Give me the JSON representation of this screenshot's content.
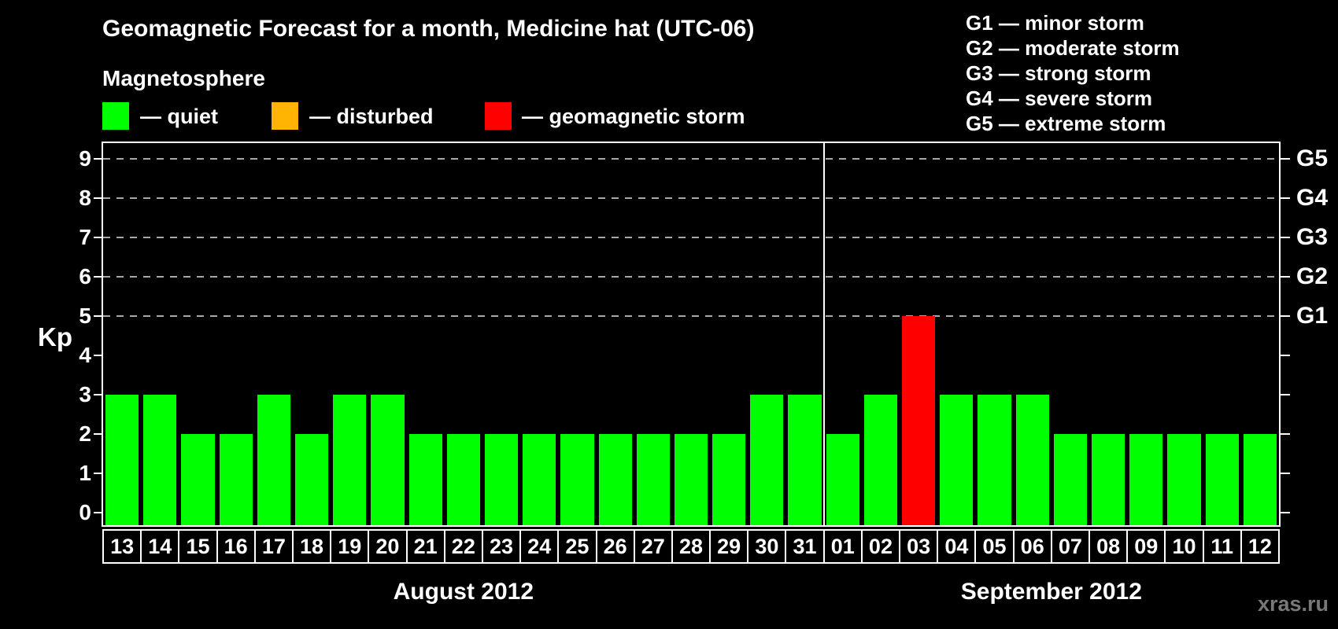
{
  "legend": {
    "heading": "Magnetosphere",
    "items": [
      {
        "name": "quiet",
        "label": "— quiet",
        "color": "#00ff00"
      },
      {
        "name": "disturbed",
        "label": "— disturbed",
        "color": "#ffb404"
      },
      {
        "name": "storm",
        "label": "— geomagnetic storm",
        "color": "#ff0000"
      }
    ]
  },
  "g_legend": {
    "items": [
      "G1 — minor storm",
      "G2 — moderate storm",
      "G3 — strong storm",
      "G4 — severe storm",
      "G5 — extreme storm"
    ]
  },
  "watermark": "xras.ru",
  "chart_data": {
    "type": "bar",
    "title": "Geomagnetic Forecast for a month, Medicine hat (UTC-06)",
    "xlabel": "",
    "ylabel": "Kp",
    "ylim": [
      0,
      9.4
    ],
    "yticks": [
      0,
      1,
      2,
      3,
      4,
      5,
      6,
      7,
      8,
      9
    ],
    "gridlines_kp": [
      5,
      6,
      7,
      8,
      9
    ],
    "grid": "dashed horizontal lines at Kp 5-9",
    "legend_position": "top-left",
    "right_axis": [
      {
        "kp": 5,
        "label": "G1"
      },
      {
        "kp": 6,
        "label": "G2"
      },
      {
        "kp": 7,
        "label": "G3"
      },
      {
        "kp": 8,
        "label": "G4"
      },
      {
        "kp": 9,
        "label": "G5"
      }
    ],
    "months": [
      {
        "label": "August 2012",
        "days": [
          {
            "day": "13",
            "kp": 3,
            "status": "quiet"
          },
          {
            "day": "14",
            "kp": 3,
            "status": "quiet"
          },
          {
            "day": "15",
            "kp": 2,
            "status": "quiet"
          },
          {
            "day": "16",
            "kp": 2,
            "status": "quiet"
          },
          {
            "day": "17",
            "kp": 3,
            "status": "quiet"
          },
          {
            "day": "18",
            "kp": 2,
            "status": "quiet"
          },
          {
            "day": "19",
            "kp": 3,
            "status": "quiet"
          },
          {
            "day": "20",
            "kp": 3,
            "status": "quiet"
          },
          {
            "day": "21",
            "kp": 2,
            "status": "quiet"
          },
          {
            "day": "22",
            "kp": 2,
            "status": "quiet"
          },
          {
            "day": "23",
            "kp": 2,
            "status": "quiet"
          },
          {
            "day": "24",
            "kp": 2,
            "status": "quiet"
          },
          {
            "day": "25",
            "kp": 2,
            "status": "quiet"
          },
          {
            "day": "26",
            "kp": 2,
            "status": "quiet"
          },
          {
            "day": "27",
            "kp": 2,
            "status": "quiet"
          },
          {
            "day": "28",
            "kp": 2,
            "status": "quiet"
          },
          {
            "day": "29",
            "kp": 2,
            "status": "quiet"
          },
          {
            "day": "30",
            "kp": 3,
            "status": "quiet"
          },
          {
            "day": "31",
            "kp": 3,
            "status": "quiet"
          }
        ]
      },
      {
        "label": "September 2012",
        "days": [
          {
            "day": "01",
            "kp": 2,
            "status": "quiet"
          },
          {
            "day": "02",
            "kp": 3,
            "status": "quiet"
          },
          {
            "day": "03",
            "kp": 5,
            "status": "storm"
          },
          {
            "day": "04",
            "kp": 3,
            "status": "quiet"
          },
          {
            "day": "05",
            "kp": 3,
            "status": "quiet"
          },
          {
            "day": "06",
            "kp": 3,
            "status": "quiet"
          },
          {
            "day": "07",
            "kp": 2,
            "status": "quiet"
          },
          {
            "day": "08",
            "kp": 2,
            "status": "quiet"
          },
          {
            "day": "09",
            "kp": 2,
            "status": "quiet"
          },
          {
            "day": "10",
            "kp": 2,
            "status": "quiet"
          },
          {
            "day": "11",
            "kp": 2,
            "status": "quiet"
          },
          {
            "day": "12",
            "kp": 2,
            "status": "quiet"
          }
        ]
      }
    ]
  }
}
